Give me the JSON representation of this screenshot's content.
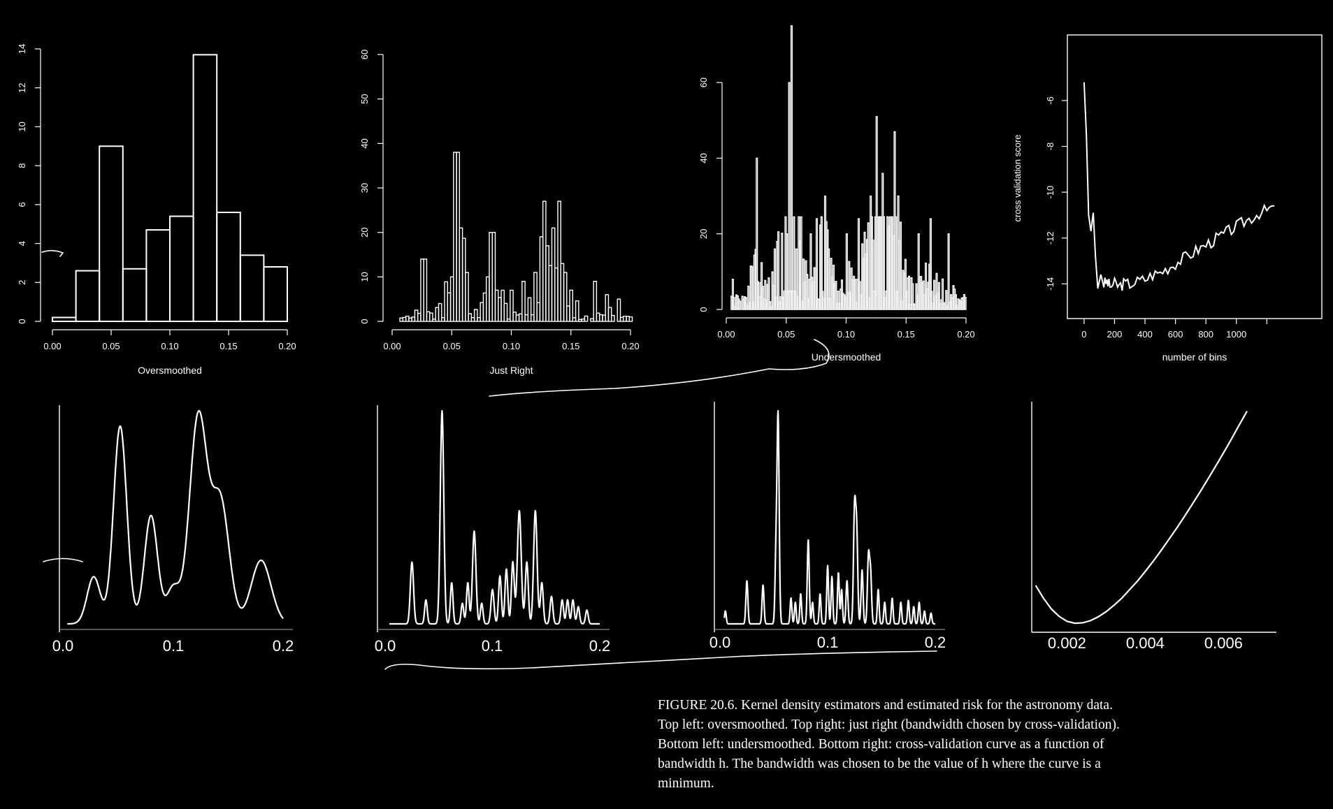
{
  "figure": {
    "caption": [
      "FIGURE 20.6. Kernel density estimators and estimated risk for the astronomy data.",
      "Top left: oversmoothed. Top right: just right (bandwidth chosen by cross-validation).",
      "Bottom left: undersmoothed. Bottom right: cross-validation curve as a function of",
      "bandwidth h. The bandwidth was chosen to be the value of h where the curve is a",
      "minimum."
    ]
  },
  "colors": {
    "background": "#000000",
    "ink": "#ffffff",
    "baseline": "#8a8a8a"
  },
  "chart_data": [
    {
      "id": "hist-over",
      "type": "bar",
      "xlabel": "Oversmoothed",
      "xlim": [
        0,
        0.2
      ],
      "ylim": [
        0,
        14
      ],
      "xticks": [
        "0.00",
        "0.05",
        "0.10",
        "0.15",
        "0.20"
      ],
      "yticks": [
        "0",
        "2",
        "4",
        "6",
        "8",
        "10",
        "12",
        "14"
      ],
      "bin_edges": [
        0,
        0.02,
        0.04,
        0.06,
        0.08,
        0.1,
        0.12,
        0.14,
        0.16,
        0.18,
        0.2
      ],
      "values": [
        0.2,
        2.6,
        9.0,
        2.7,
        4.7,
        5.4,
        13.7,
        5.6,
        3.4,
        2.8
      ]
    },
    {
      "id": "hist-just",
      "type": "bar",
      "xlabel": "Just Right",
      "xlim": [
        0,
        0.2
      ],
      "ylim": [
        0,
        60
      ],
      "xticks": [
        "0.00",
        "0.05",
        "0.10",
        "0.15",
        "0.20"
      ],
      "yticks": [
        "0",
        "10",
        "20",
        "30",
        "40",
        "50",
        "60"
      ],
      "bin_width": 0.0025,
      "peaks": [
        [
          0.025,
          14
        ],
        [
          0.038,
          4
        ],
        [
          0.05,
          10
        ],
        [
          0.053,
          38
        ],
        [
          0.055,
          29
        ],
        [
          0.062,
          11
        ],
        [
          0.08,
          10
        ],
        [
          0.083,
          20
        ],
        [
          0.085,
          11
        ],
        [
          0.1,
          7
        ],
        [
          0.11,
          9
        ],
        [
          0.12,
          11
        ],
        [
          0.125,
          19
        ],
        [
          0.127,
          27
        ],
        [
          0.13,
          17
        ],
        [
          0.137,
          12
        ],
        [
          0.14,
          27
        ],
        [
          0.142,
          13
        ],
        [
          0.145,
          11
        ],
        [
          0.15,
          7
        ],
        [
          0.17,
          9
        ],
        [
          0.18,
          6
        ],
        [
          0.19,
          5
        ]
      ]
    },
    {
      "id": "hist-under",
      "type": "bar",
      "xlabel": "Undersmoothed",
      "xlim": [
        0,
        0.2
      ],
      "ylim": [
        0,
        70
      ],
      "xticks": [
        "0.00",
        "0.05",
        "0.10",
        "0.15",
        "0.20"
      ],
      "yticks": [
        "0",
        "20",
        "40",
        "60"
      ],
      "bin_width": 0.001,
      "peaks": [
        [
          0.005,
          8
        ],
        [
          0.025,
          40
        ],
        [
          0.04,
          16
        ],
        [
          0.05,
          20
        ],
        [
          0.052,
          60
        ],
        [
          0.054,
          75
        ],
        [
          0.058,
          16
        ],
        [
          0.07,
          20
        ],
        [
          0.075,
          24
        ],
        [
          0.082,
          30
        ],
        [
          0.085,
          16
        ],
        [
          0.1,
          20
        ],
        [
          0.11,
          24
        ],
        [
          0.12,
          30
        ],
        [
          0.125,
          51
        ],
        [
          0.13,
          36
        ],
        [
          0.135,
          22
        ],
        [
          0.14,
          47
        ],
        [
          0.143,
          30
        ],
        [
          0.16,
          20
        ],
        [
          0.17,
          24
        ],
        [
          0.185,
          20
        ]
      ]
    },
    {
      "id": "cv-bins",
      "type": "line",
      "xlabel": "number of bins",
      "ylabel": "cross validation score",
      "xlim": [
        -50,
        1350
      ],
      "ylim": [
        -14.6,
        -4.6
      ],
      "xticks": [
        "0",
        "200",
        "400",
        "600",
        "800",
        "1000"
      ],
      "yticks": [
        "-6",
        "-8",
        "-10",
        "-12",
        "-14"
      ],
      "x": [
        0,
        15,
        30,
        45,
        60,
        75,
        90,
        110,
        130,
        150,
        170,
        200,
        230,
        260,
        300,
        350,
        400,
        450,
        500,
        550,
        600,
        650,
        700,
        750,
        800,
        850,
        900,
        950,
        1000,
        1050,
        1100,
        1150,
        1200,
        1250
      ],
      "y": [
        -5.2,
        -7.5,
        -11.0,
        -11.7,
        -10.9,
        -12.8,
        -14.2,
        -13.5,
        -14.0,
        -13.9,
        -14.1,
        -14.0,
        -14.1,
        -14.0,
        -14.0,
        -13.9,
        -13.8,
        -13.6,
        -13.5,
        -13.3,
        -13.1,
        -12.9,
        -12.7,
        -12.5,
        -12.3,
        -12.1,
        -11.9,
        -11.7,
        -11.5,
        -11.3,
        -11.1,
        -10.9,
        -10.8,
        -10.6
      ]
    },
    {
      "id": "kde-over",
      "type": "line",
      "xlim": [
        0,
        0.2
      ],
      "xticks": [
        "0.0",
        "0.1",
        "0.2"
      ],
      "components": [
        [
          0.028,
          0.006,
          0.2
        ],
        [
          0.052,
          0.006,
          0.84
        ],
        [
          0.08,
          0.006,
          0.46
        ],
        [
          0.1,
          0.006,
          0.15
        ],
        [
          0.123,
          0.008,
          0.88
        ],
        [
          0.143,
          0.008,
          0.52
        ],
        [
          0.18,
          0.009,
          0.27
        ]
      ]
    },
    {
      "id": "kde-just",
      "type": "line",
      "xlim": [
        0,
        0.2
      ],
      "xticks": [
        "0.0",
        "0.1",
        "0.2"
      ],
      "components": [
        [
          0.025,
          0.0015,
          0.18
        ],
        [
          0.038,
          0.0012,
          0.07
        ],
        [
          0.053,
          0.0016,
          0.62
        ],
        [
          0.062,
          0.0012,
          0.12
        ],
        [
          0.072,
          0.0012,
          0.06
        ],
        [
          0.077,
          0.0012,
          0.12
        ],
        [
          0.083,
          0.0016,
          0.27
        ],
        [
          0.09,
          0.0012,
          0.06
        ],
        [
          0.1,
          0.0014,
          0.1
        ],
        [
          0.107,
          0.0013,
          0.14
        ],
        [
          0.113,
          0.0013,
          0.16
        ],
        [
          0.119,
          0.0013,
          0.18
        ],
        [
          0.125,
          0.0018,
          0.33
        ],
        [
          0.132,
          0.0014,
          0.18
        ],
        [
          0.14,
          0.0016,
          0.33
        ],
        [
          0.146,
          0.0013,
          0.12
        ],
        [
          0.155,
          0.0013,
          0.08
        ],
        [
          0.165,
          0.0012,
          0.07
        ],
        [
          0.17,
          0.0012,
          0.07
        ],
        [
          0.175,
          0.0012,
          0.07
        ],
        [
          0.18,
          0.0012,
          0.05
        ],
        [
          0.188,
          0.0012,
          0.04
        ]
      ]
    },
    {
      "id": "kde-under",
      "type": "line",
      "xlim": [
        0,
        0.2
      ],
      "xticks": [
        "0.0",
        "0.1",
        "0.2"
      ],
      "components": [
        [
          0.005,
          0.0008,
          0.06
        ],
        [
          0.025,
          0.0009,
          0.2
        ],
        [
          0.04,
          0.0009,
          0.18
        ],
        [
          0.052,
          0.0009,
          0.3
        ],
        [
          0.054,
          0.001,
          0.96
        ],
        [
          0.066,
          0.0008,
          0.12
        ],
        [
          0.07,
          0.0008,
          0.1
        ],
        [
          0.075,
          0.0008,
          0.14
        ],
        [
          0.082,
          0.0009,
          0.39
        ],
        [
          0.086,
          0.0008,
          0.1
        ],
        [
          0.093,
          0.0008,
          0.14
        ],
        [
          0.1,
          0.0008,
          0.27
        ],
        [
          0.104,
          0.0008,
          0.22
        ],
        [
          0.11,
          0.0008,
          0.24
        ],
        [
          0.113,
          0.0008,
          0.16
        ],
        [
          0.118,
          0.0009,
          0.2
        ],
        [
          0.125,
          0.001,
          0.52
        ],
        [
          0.127,
          0.001,
          0.42
        ],
        [
          0.132,
          0.0009,
          0.25
        ],
        [
          0.138,
          0.001,
          0.32
        ],
        [
          0.14,
          0.0009,
          0.22
        ],
        [
          0.147,
          0.0008,
          0.16
        ],
        [
          0.153,
          0.0008,
          0.1
        ],
        [
          0.16,
          0.0008,
          0.12
        ],
        [
          0.168,
          0.0008,
          0.1
        ],
        [
          0.175,
          0.0008,
          0.11
        ],
        [
          0.18,
          0.0008,
          0.08
        ],
        [
          0.185,
          0.0008,
          0.1
        ],
        [
          0.19,
          0.0008,
          0.06
        ],
        [
          0.196,
          0.0008,
          0.05
        ]
      ]
    },
    {
      "id": "cv-bandwidth",
      "type": "line",
      "xlim": [
        0.0011,
        0.0071
      ],
      "ylim": [
        0,
        1
      ],
      "xticks": [
        "0.002",
        "0.004",
        "0.006"
      ],
      "x": [
        0.0012,
        0.0014,
        0.0016,
        0.0018,
        0.002,
        0.0022,
        0.0024,
        0.0026,
        0.0028,
        0.003,
        0.0032,
        0.0034,
        0.0036,
        0.0038,
        0.004,
        0.0042,
        0.0044,
        0.0046,
        0.0048,
        0.005,
        0.0052,
        0.0054,
        0.0056,
        0.0058,
        0.006,
        0.0062,
        0.0064,
        0.0066
      ],
      "y": [
        0.18,
        0.12,
        0.07,
        0.035,
        0.012,
        0.003,
        0.005,
        0.015,
        0.033,
        0.057,
        0.087,
        0.12,
        0.16,
        0.2,
        0.245,
        0.292,
        0.342,
        0.394,
        0.447,
        0.502,
        0.559,
        0.617,
        0.677,
        0.738,
        0.8,
        0.864,
        0.93,
        0.995
      ]
    }
  ]
}
